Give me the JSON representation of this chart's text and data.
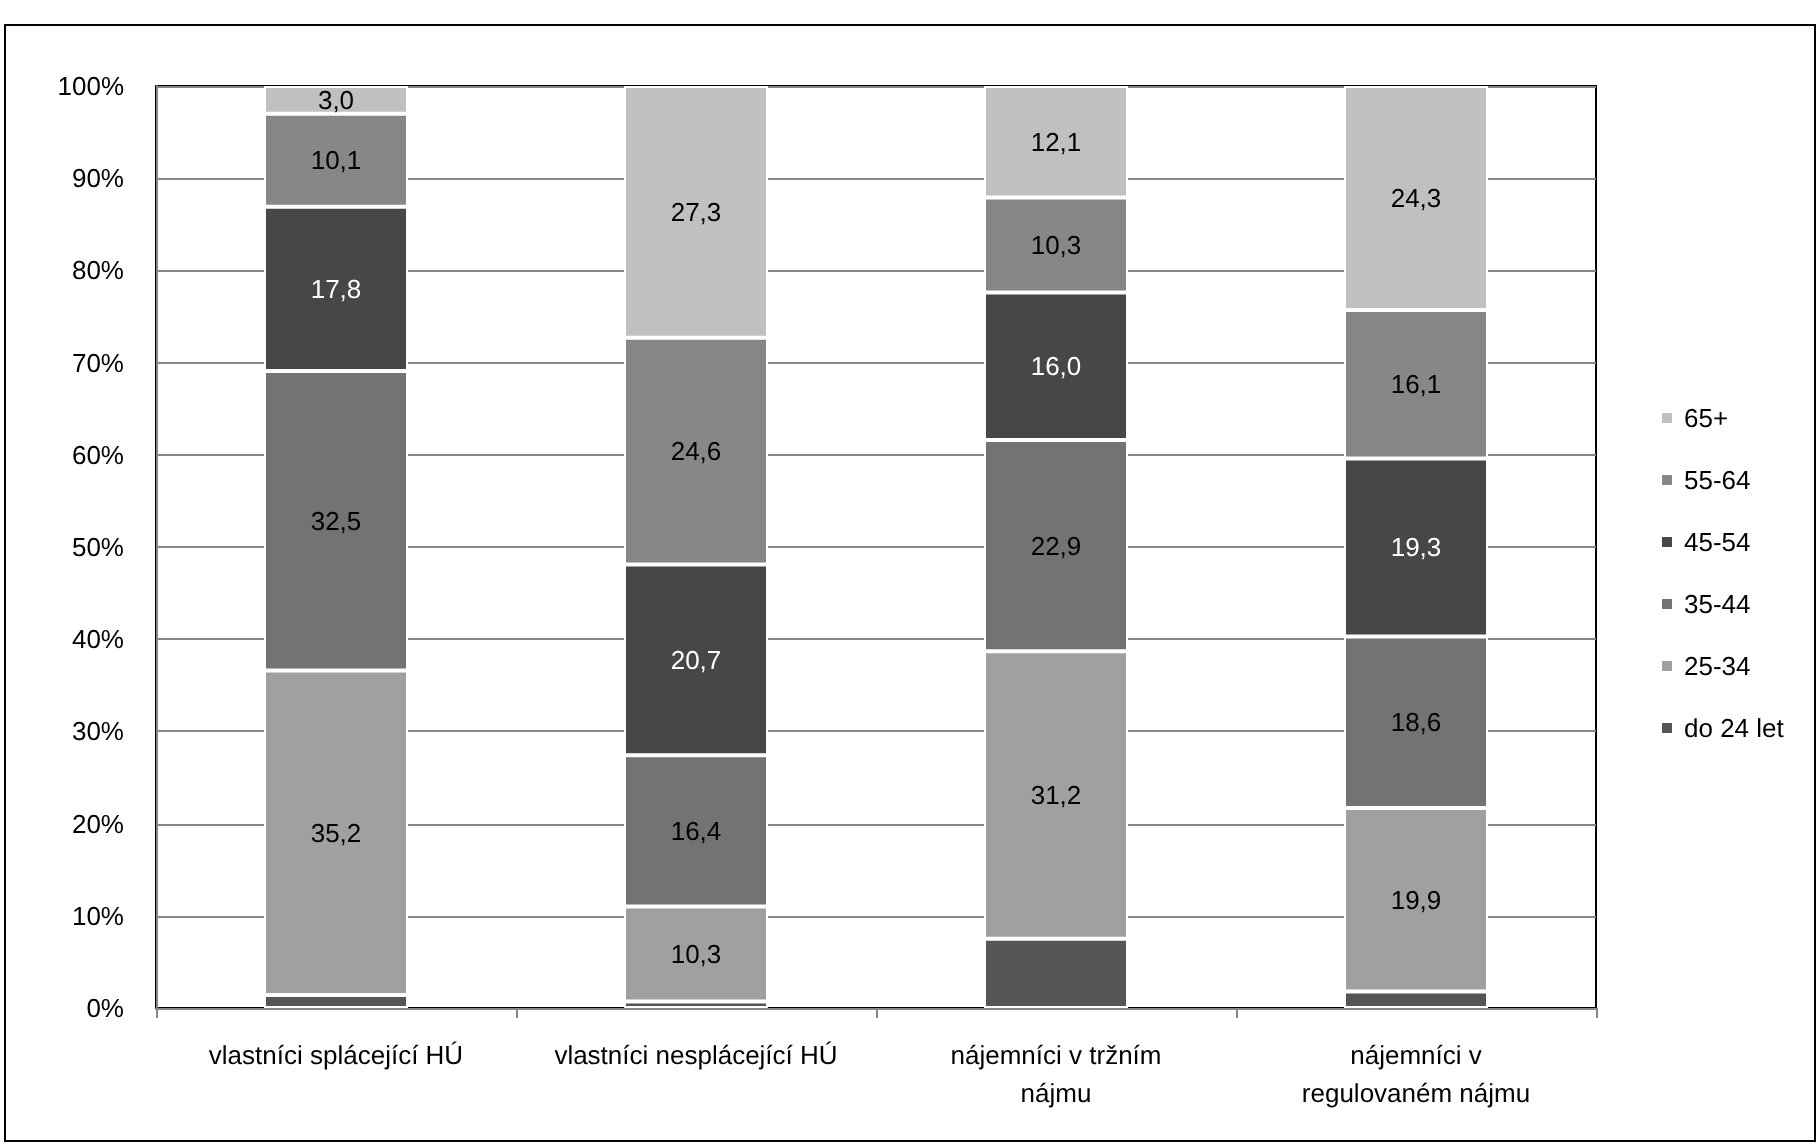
{
  "chart_data": {
    "type": "bar",
    "stacked": true,
    "categories": [
      "vlastníci splácející HÚ",
      "vlastníci nesplácející HÚ",
      "nájemníci v tržním\nnájmu",
      "nájemníci v\nregulovaném nájmu"
    ],
    "series": [
      {
        "name": "do 24 let",
        "color": "#555555",
        "values": [
          1.4,
          0.7,
          7.5,
          1.8
        ],
        "value_labels": [
          null,
          null,
          null,
          null
        ]
      },
      {
        "name": "25-34",
        "color": "#a0a0a0",
        "values": [
          35.2,
          10.3,
          31.2,
          19.9
        ],
        "value_labels": [
          "35,2",
          "10,3",
          "31,2",
          "19,9"
        ]
      },
      {
        "name": "35-44",
        "color": "#737373",
        "values": [
          32.5,
          16.4,
          22.9,
          18.6
        ],
        "value_labels": [
          "32,5",
          "16,4",
          "22,9",
          "18,6"
        ]
      },
      {
        "name": "45-54",
        "color": "#474747",
        "values": [
          17.8,
          20.7,
          16.0,
          19.3
        ],
        "value_labels": [
          "17,8",
          "20,7",
          "16,0",
          "19,3"
        ]
      },
      {
        "name": "55-64",
        "color": "#878787",
        "values": [
          10.1,
          24.6,
          10.3,
          16.1
        ],
        "value_labels": [
          "10,1",
          "24,6",
          "10,3",
          "16,1"
        ]
      },
      {
        "name": "65+",
        "color": "#c0c0c0",
        "values": [
          3.0,
          27.3,
          12.1,
          24.3
        ],
        "value_labels": [
          "3,0",
          "27,3",
          "12,1",
          "24,3"
        ]
      }
    ],
    "ylim": [
      0,
      100
    ],
    "yticks": [
      {
        "value": 0,
        "label": "0%"
      },
      {
        "value": 10,
        "label": "10%"
      },
      {
        "value": 20,
        "label": "20%"
      },
      {
        "value": 30,
        "label": "30%"
      },
      {
        "value": 40,
        "label": "40%"
      },
      {
        "value": 50,
        "label": "50%"
      },
      {
        "value": 60,
        "label": "60%"
      },
      {
        "value": 70,
        "label": "70%"
      },
      {
        "value": 80,
        "label": "80%"
      },
      {
        "value": 90,
        "label": "90%"
      },
      {
        "value": 100,
        "label": "100%"
      }
    ],
    "grid": "y",
    "legend": "right"
  }
}
